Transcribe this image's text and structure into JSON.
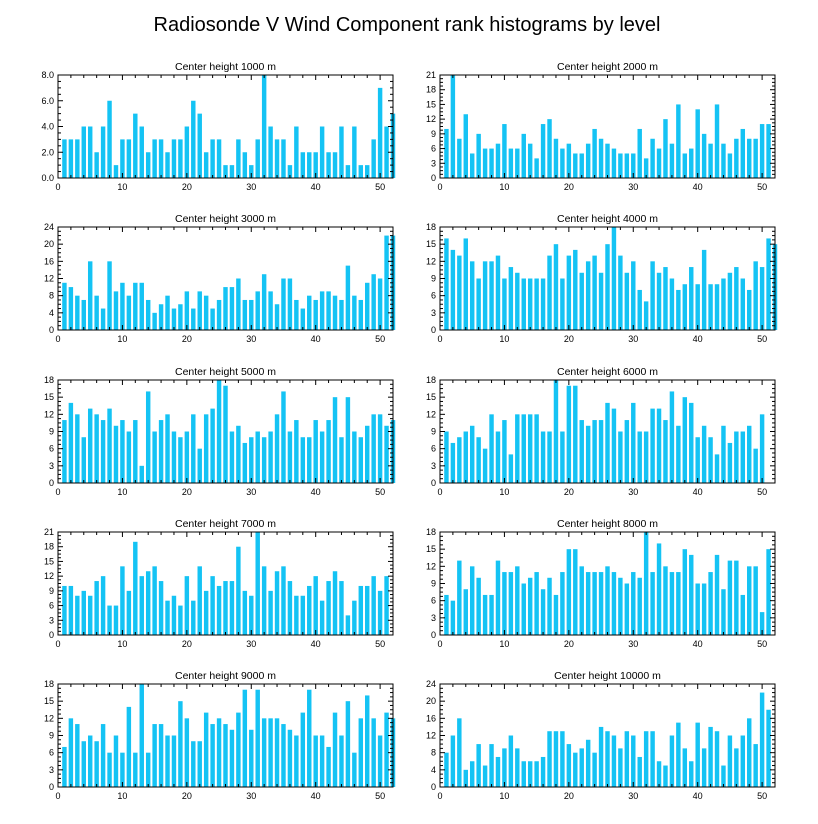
{
  "chart_data": {
    "title": "Radiosonde V Wind Component rank histograms by level",
    "type": "bar",
    "xlim": [
      0,
      52
    ],
    "xticks": [
      0,
      10,
      20,
      30,
      40,
      50
    ],
    "color": "#14c3f4",
    "panels": [
      {
        "title": "Center height 1000 m",
        "ylim": [
          0,
          8
        ],
        "yticks": [
          "0.0",
          "2.0",
          "4.0",
          "6.0",
          "8.0"
        ],
        "values": [
          3,
          3,
          3,
          4,
          4,
          2,
          4,
          6,
          1,
          3,
          3,
          5,
          4,
          2,
          3,
          3,
          2,
          3,
          3,
          4,
          6,
          5,
          2,
          3,
          3,
          1,
          1,
          3,
          2,
          1,
          3,
          8,
          4,
          3,
          3,
          1,
          4,
          2,
          2,
          2,
          4,
          2,
          2,
          4,
          1,
          4,
          1,
          1,
          3,
          7,
          4,
          5
        ]
      },
      {
        "title": "Center height 2000 m",
        "ylim": [
          0,
          21
        ],
        "yticks": [
          "0",
          "3",
          "6",
          "9",
          "12",
          "15",
          "18",
          "21"
        ],
        "values": [
          10,
          21,
          8,
          13,
          5,
          9,
          6,
          6,
          7,
          11,
          6,
          6,
          9,
          7,
          4,
          11,
          12,
          8,
          6,
          7,
          5,
          5,
          7,
          10,
          8,
          7,
          6,
          5,
          5,
          5,
          10,
          4,
          8,
          6,
          12,
          7,
          15,
          5,
          6,
          14,
          9,
          7,
          15,
          7,
          5,
          8,
          10,
          8,
          8,
          11,
          11
        ]
      },
      {
        "title": "Center height 3000 m",
        "ylim": [
          0,
          24
        ],
        "yticks": [
          "0",
          "4",
          "8",
          "12",
          "16",
          "20",
          "24"
        ],
        "values": [
          11,
          10,
          8,
          7,
          16,
          8,
          5,
          16,
          9,
          11,
          8,
          11,
          11,
          7,
          4,
          6,
          8,
          5,
          6,
          9,
          5,
          9,
          8,
          5,
          7,
          10,
          10,
          12,
          7,
          7,
          9,
          13,
          9,
          6,
          12,
          12,
          7,
          5,
          8,
          7,
          9,
          9,
          8,
          7,
          15,
          8,
          7,
          11,
          13,
          12,
          22,
          22
        ]
      },
      {
        "title": "Center height 4000 m",
        "ylim": [
          0,
          18
        ],
        "yticks": [
          "0",
          "3",
          "6",
          "9",
          "12",
          "15",
          "18"
        ],
        "values": [
          16,
          14,
          13,
          16,
          12,
          9,
          12,
          12,
          13,
          9,
          11,
          10,
          9,
          9,
          9,
          9,
          13,
          15,
          9,
          13,
          14,
          10,
          12,
          13,
          10,
          15,
          18,
          13,
          10,
          12,
          7,
          5,
          12,
          10,
          11,
          9,
          7,
          8,
          11,
          8,
          14,
          8,
          8,
          9,
          10,
          11,
          9,
          7,
          12,
          11,
          16,
          15
        ]
      },
      {
        "title": "Center height 5000 m",
        "ylim": [
          0,
          18
        ],
        "yticks": [
          "0",
          "3",
          "6",
          "9",
          "12",
          "15",
          "18"
        ],
        "values": [
          11,
          14,
          12,
          8,
          13,
          12,
          11,
          13,
          10,
          11,
          9,
          11,
          3,
          16,
          9,
          11,
          12,
          9,
          8,
          9,
          12,
          6,
          12,
          13,
          18,
          17,
          9,
          10,
          7,
          8,
          9,
          8,
          9,
          12,
          16,
          9,
          11,
          8,
          8,
          11,
          9,
          11,
          15,
          8,
          15,
          9,
          8,
          10,
          12,
          12,
          10,
          11
        ]
      },
      {
        "title": "Center height 6000 m",
        "ylim": [
          0,
          18
        ],
        "yticks": [
          "0",
          "3",
          "6",
          "9",
          "12",
          "15",
          "18"
        ],
        "values": [
          9,
          7,
          8,
          9,
          10,
          8,
          6,
          12,
          9,
          11,
          5,
          12,
          12,
          12,
          12,
          9,
          9,
          18,
          9,
          17,
          17,
          11,
          10,
          11,
          11,
          14,
          13,
          9,
          11,
          14,
          9,
          9,
          13,
          13,
          11,
          16,
          10,
          15,
          14,
          8,
          10,
          8,
          5,
          10,
          7,
          9,
          9,
          10,
          6,
          12
        ]
      },
      {
        "title": "Center height 7000 m",
        "ylim": [
          0,
          21
        ],
        "yticks": [
          "0",
          "3",
          "6",
          "9",
          "12",
          "15",
          "18",
          "21"
        ],
        "values": [
          10,
          10,
          8,
          9,
          8,
          11,
          12,
          6,
          6,
          14,
          9,
          19,
          12,
          13,
          14,
          11,
          7,
          8,
          6,
          12,
          7,
          14,
          9,
          12,
          10,
          11,
          11,
          18,
          9,
          8,
          21,
          14,
          9,
          13,
          14,
          11,
          8,
          8,
          10,
          12,
          7,
          11,
          13,
          11,
          4,
          7,
          10,
          10,
          12,
          9,
          12
        ]
      },
      {
        "title": "Center height 8000 m",
        "ylim": [
          0,
          18
        ],
        "yticks": [
          "0",
          "3",
          "6",
          "9",
          "12",
          "15",
          "18"
        ],
        "values": [
          7,
          6,
          13,
          8,
          12,
          10,
          7,
          7,
          13,
          11,
          11,
          12,
          9,
          10,
          11,
          8,
          10,
          7,
          11,
          15,
          15,
          12,
          11,
          11,
          11,
          12,
          11,
          10,
          9,
          11,
          10,
          18,
          11,
          16,
          12,
          11,
          11,
          15,
          14,
          9,
          9,
          11,
          14,
          8,
          13,
          13,
          7,
          12,
          12,
          4,
          15
        ]
      },
      {
        "title": "Center height 9000 m",
        "ylim": [
          0,
          18
        ],
        "yticks": [
          "0",
          "3",
          "6",
          "9",
          "12",
          "15",
          "18"
        ],
        "values": [
          7,
          12,
          11,
          8,
          9,
          8,
          11,
          6,
          9,
          6,
          14,
          6,
          18,
          6,
          11,
          11,
          9,
          9,
          15,
          12,
          8,
          8,
          13,
          11,
          12,
          11,
          10,
          13,
          17,
          10,
          17,
          12,
          12,
          12,
          11,
          10,
          9,
          13,
          17,
          9,
          9,
          7,
          13,
          9,
          15,
          6,
          12,
          16,
          12,
          9,
          13,
          12
        ]
      },
      {
        "title": "Center height 10000 m",
        "ylim": [
          0,
          24
        ],
        "yticks": [
          "0",
          "4",
          "8",
          "12",
          "16",
          "20",
          "24"
        ],
        "values": [
          8,
          12,
          16,
          4,
          6,
          10,
          5,
          10,
          7,
          9,
          12,
          9,
          6,
          6,
          6,
          7,
          13,
          13,
          13,
          10,
          8,
          9,
          11,
          8,
          14,
          13,
          12,
          9,
          13,
          12,
          7,
          13,
          13,
          6,
          5,
          12,
          15,
          9,
          6,
          15,
          9,
          14,
          13,
          5,
          12,
          9,
          12,
          16,
          10,
          22,
          18
        ]
      }
    ]
  }
}
